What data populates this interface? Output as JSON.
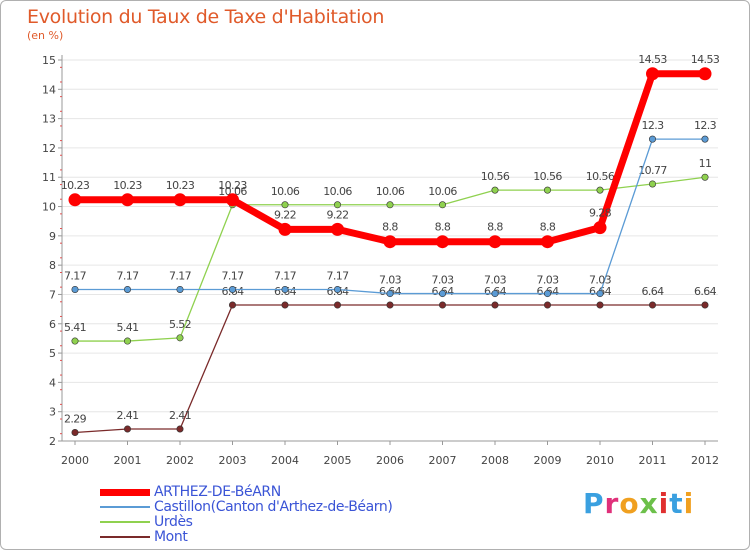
{
  "chart_data": {
    "type": "line",
    "title": "Evolution du Taux de Taxe d'Habitation",
    "unit_label": "(en %)",
    "x": [
      "2000",
      "2001",
      "2002",
      "2003",
      "2004",
      "2005",
      "2006",
      "2007",
      "2008",
      "2009",
      "2010",
      "2011",
      "2012"
    ],
    "ylim": [
      2,
      15
    ],
    "yticks": [
      "2",
      "3",
      "4",
      "5",
      "6",
      "7",
      "8",
      "9",
      "10",
      "11",
      "12",
      "13",
      "14",
      "15"
    ],
    "series": [
      {
        "name": "ARTHEZ-DE-BéARN",
        "color": "#ff0000",
        "values": [
          10.23,
          10.23,
          10.23,
          10.23,
          9.22,
          9.22,
          8.8,
          8.8,
          8.8,
          8.8,
          9.28,
          14.53,
          14.53
        ],
        "labels": [
          "10.23",
          "10.23",
          "10.23",
          "10.23",
          "9.22",
          "9.22",
          "8.8",
          "8.8",
          "8.8",
          "8.8",
          "9.28",
          "14.53",
          "14.53"
        ]
      },
      {
        "name": "Castillon(Canton d'Arthez-de-Béarn)",
        "color": "#5b9bd5",
        "values": [
          7.17,
          7.17,
          7.17,
          7.17,
          7.17,
          7.17,
          7.03,
          7.03,
          7.03,
          7.03,
          7.03,
          12.3,
          12.3
        ],
        "labels": [
          "7.17",
          "7.17",
          "7.17",
          "7.17",
          "7.17",
          "7.17",
          "7.03",
          "7.03",
          "7.03",
          "7.03",
          "7.03",
          "12.3",
          "12.3"
        ]
      },
      {
        "name": "Urdès",
        "color": "#8fd14f",
        "values": [
          5.41,
          5.41,
          5.52,
          10.06,
          10.06,
          10.06,
          10.06,
          10.06,
          10.56,
          10.56,
          10.56,
          10.77,
          11
        ],
        "labels": [
          "5.41",
          "5.41",
          "5.52",
          "10.06",
          "10.06",
          "10.06",
          "10.06",
          "10.06",
          "10.56",
          "10.56",
          "10.56",
          "10.77",
          "11"
        ]
      },
      {
        "name": "Mont",
        "color": "#7a2a2a",
        "values": [
          2.29,
          2.41,
          2.41,
          6.64,
          6.64,
          6.64,
          6.64,
          6.64,
          6.64,
          6.64,
          6.64,
          6.64,
          6.64
        ],
        "labels": [
          "2.29",
          "2.41",
          "2.41",
          "6.64",
          "6.64",
          "6.64",
          "6.64",
          "6.64",
          "6.64",
          "6.64",
          "6.64",
          "6.64",
          "6.64"
        ]
      }
    ]
  },
  "logo": {
    "letters": [
      "P",
      "r",
      "o",
      "x",
      "i",
      "t",
      "i"
    ],
    "colors": [
      "#3aa0e0",
      "#e0307a",
      "#f0a020",
      "#6cc04a",
      "#e03030",
      "#3aa0e0",
      "#f0a020"
    ]
  }
}
